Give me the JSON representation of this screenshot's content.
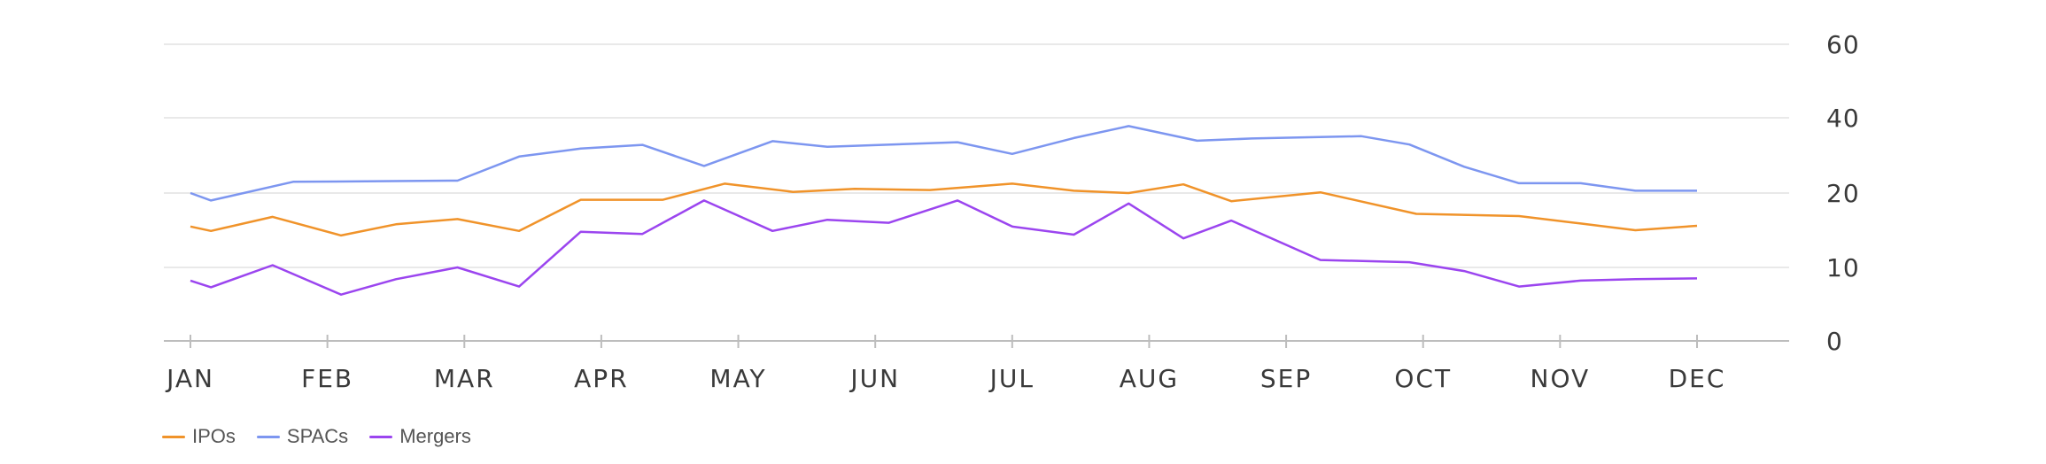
{
  "chart_data": {
    "type": "line",
    "title": "",
    "xlabel": "",
    "ylabel": "",
    "categories": [
      "JAN",
      "FEB",
      "MAR",
      "APR",
      "MAY",
      "JUN",
      "JUL",
      "AUG",
      "SEP",
      "OCT",
      "NOV",
      "DEC"
    ],
    "y_ticks": [
      0,
      10,
      20,
      40,
      60
    ],
    "y_axis_position": "right",
    "grid": true,
    "legend_position": "bottom-left",
    "series": [
      {
        "name": "IPOs",
        "color": "#f0932a",
        "x": [
          0,
          0.15,
          0.6,
          1.1,
          1.5,
          1.95,
          2.4,
          2.85,
          3.45,
          3.9,
          4.4,
          4.85,
          5.4,
          6.0,
          6.45,
          6.85,
          7.25,
          7.6,
          8.25,
          8.95,
          9.7,
          10.15,
          10.55,
          11.0
        ],
        "values": [
          15.5,
          14.9,
          16.8,
          14.3,
          15.8,
          16.5,
          14.9,
          19.1,
          19.1,
          22.5,
          20.3,
          21.1,
          20.8,
          22.5,
          20.6,
          20.0,
          22.3,
          18.9,
          20.2,
          17.2,
          16.9,
          15.9,
          15.0,
          15.6
        ]
      },
      {
        "name": "SPACs",
        "color": "#7d96f0",
        "x": [
          0,
          0.15,
          0.75,
          1.95,
          2.4,
          2.85,
          3.3,
          3.75,
          4.25,
          4.65,
          5.6,
          6.0,
          6.45,
          6.85,
          7.35,
          7.75,
          8.55,
          8.9,
          9.3,
          9.7,
          10.15,
          10.55,
          11.0
        ],
        "values": [
          20.0,
          19.0,
          23.0,
          23.3,
          29.7,
          31.8,
          32.8,
          27.2,
          33.8,
          32.3,
          33.5,
          30.4,
          34.6,
          37.8,
          33.9,
          34.5,
          35.1,
          32.9,
          27.0,
          22.6,
          22.6,
          20.6,
          20.6
        ]
      },
      {
        "name": "Mergers",
        "color": "#9b45ef",
        "x": [
          0,
          0.15,
          0.6,
          1.1,
          1.5,
          1.95,
          2.4,
          2.85,
          3.3,
          3.75,
          4.25,
          4.65,
          5.1,
          5.6,
          6.0,
          6.45,
          6.85,
          7.25,
          7.6,
          8.25,
          8.9,
          9.3,
          9.7,
          10.15,
          10.55,
          11.0
        ],
        "values": [
          8.2,
          7.3,
          10.3,
          6.3,
          8.4,
          10.0,
          7.4,
          14.8,
          14.5,
          19.0,
          14.9,
          16.4,
          16.0,
          19.0,
          15.5,
          14.4,
          18.6,
          13.9,
          16.3,
          11.0,
          10.7,
          9.5,
          7.4,
          8.2,
          8.4,
          8.5
        ]
      }
    ]
  },
  "legend": {
    "items": [
      {
        "label": "IPOs",
        "color": "#f0932a"
      },
      {
        "label": "SPACs",
        "color": "#7d96f0"
      },
      {
        "label": "Mergers",
        "color": "#9b45ef"
      }
    ]
  }
}
